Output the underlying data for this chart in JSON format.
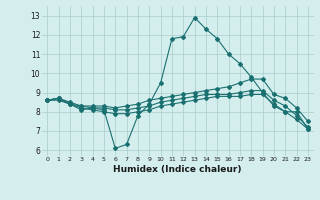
{
  "xlabel": "Humidex (Indice chaleur)",
  "bg_color": "#d4eeee",
  "grid_color": "#aacccc",
  "line_color": "#1a7070",
  "xlim": [
    -0.5,
    23.5
  ],
  "ylim": [
    5.7,
    13.5
  ],
  "yticks": [
    6,
    7,
    8,
    9,
    10,
    11,
    12,
    13
  ],
  "xticks": [
    0,
    1,
    2,
    3,
    4,
    5,
    6,
    7,
    8,
    9,
    10,
    11,
    12,
    13,
    14,
    15,
    16,
    17,
    18,
    19,
    20,
    21,
    22,
    23
  ],
  "line1_x": [
    0,
    1,
    2,
    3,
    4,
    5,
    6,
    7,
    8,
    9,
    10,
    11,
    12,
    13,
    14,
    15,
    16,
    17,
    18,
    19,
    20,
    21,
    22,
    23
  ],
  "line1_y": [
    8.6,
    8.7,
    8.4,
    8.1,
    8.2,
    8.1,
    6.1,
    6.3,
    7.8,
    8.4,
    9.5,
    11.8,
    11.9,
    12.9,
    12.3,
    11.8,
    11.0,
    10.5,
    9.8,
    9.0,
    8.3,
    8.0,
    8.0,
    7.1
  ],
  "line2_x": [
    0,
    1,
    2,
    3,
    4,
    5,
    6,
    7,
    8,
    9,
    10,
    11,
    12,
    13,
    14,
    15,
    16,
    17,
    18,
    19,
    20,
    21,
    22,
    23
  ],
  "line2_y": [
    8.6,
    8.7,
    8.4,
    8.3,
    8.3,
    8.3,
    8.2,
    8.3,
    8.4,
    8.6,
    8.7,
    8.8,
    8.9,
    9.0,
    9.1,
    9.2,
    9.3,
    9.5,
    9.7,
    9.7,
    8.9,
    8.7,
    8.2,
    7.5
  ],
  "line3_x": [
    0,
    1,
    2,
    3,
    4,
    5,
    6,
    7,
    8,
    9,
    10,
    11,
    12,
    13,
    14,
    15,
    16,
    17,
    18,
    19,
    20,
    21,
    22,
    23
  ],
  "line3_y": [
    8.6,
    8.7,
    8.5,
    8.3,
    8.2,
    8.2,
    8.1,
    8.1,
    8.2,
    8.3,
    8.5,
    8.6,
    8.7,
    8.8,
    8.9,
    8.9,
    8.9,
    9.0,
    9.1,
    9.1,
    8.6,
    8.3,
    7.8,
    7.2
  ],
  "line4_x": [
    0,
    1,
    2,
    3,
    4,
    5,
    6,
    7,
    8,
    9,
    10,
    11,
    12,
    13,
    14,
    15,
    16,
    17,
    18,
    19,
    20,
    21,
    22,
    23
  ],
  "line4_y": [
    8.6,
    8.6,
    8.4,
    8.2,
    8.1,
    8.0,
    7.9,
    7.9,
    8.0,
    8.1,
    8.3,
    8.4,
    8.5,
    8.6,
    8.7,
    8.8,
    8.8,
    8.8,
    8.9,
    8.9,
    8.4,
    8.0,
    7.6,
    7.1
  ]
}
